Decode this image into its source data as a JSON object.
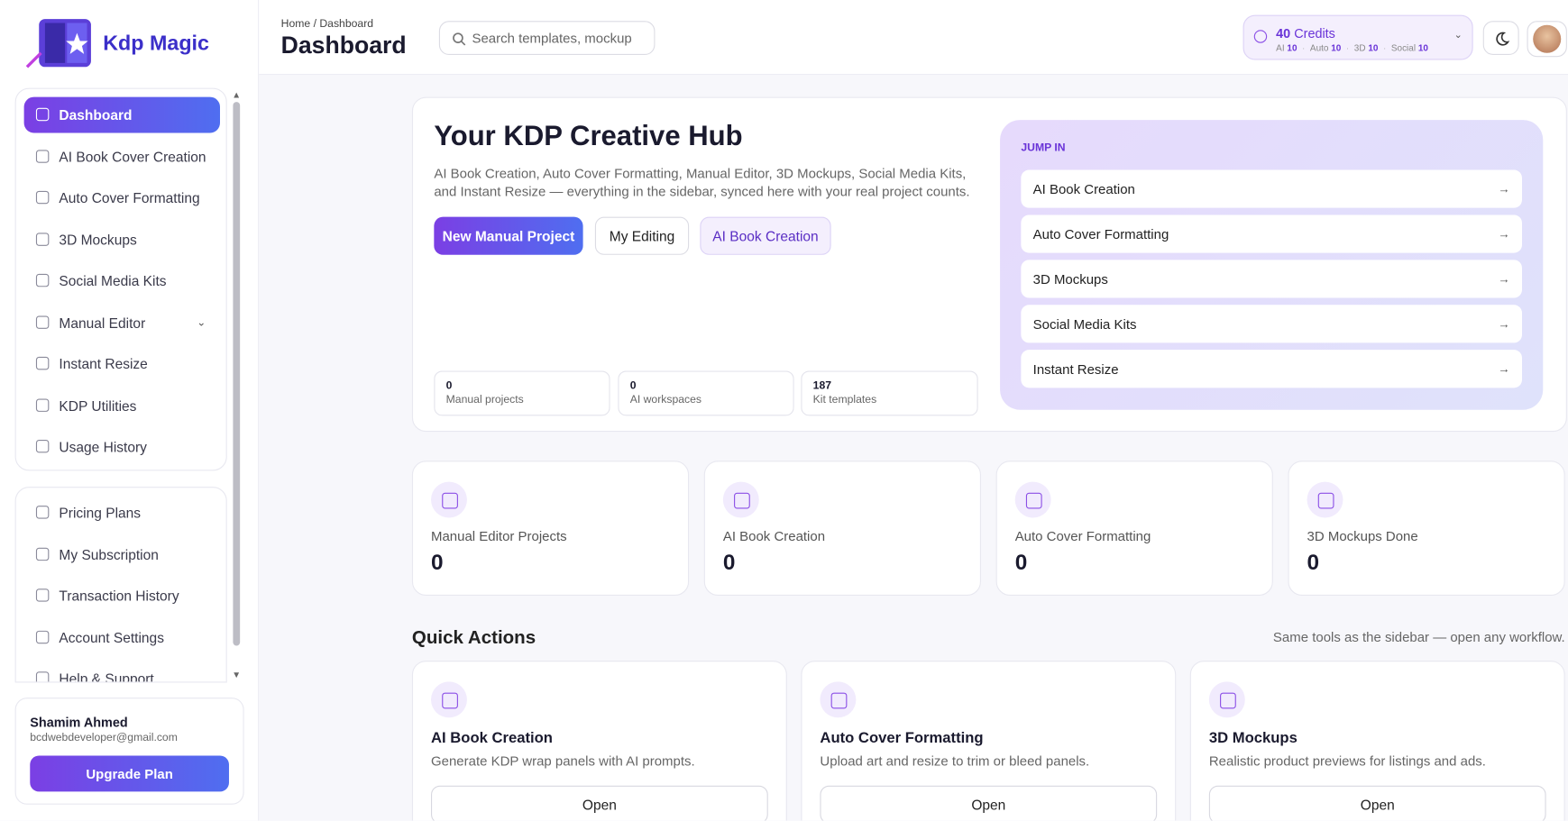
{
  "logo": "Kdp Magic",
  "nav": [
    "Dashboard",
    "AI Book Cover Creation",
    "Auto Cover Formatting",
    "3D Mockups",
    "Social Media Kits",
    "Manual Editor",
    "Instant Resize",
    "KDP Utilities",
    "Usage History"
  ],
  "nav2": [
    "Pricing Plans",
    "My Subscription",
    "Transaction History",
    "Account Settings",
    "Help & Support"
  ],
  "user": {
    "name": "Shamim Ahmed",
    "email": "bcdwebdeveloper@gmail.com",
    "button": "Upgrade Plan"
  },
  "header": {
    "breadcrumb": "Home / Dashboard",
    "title": "Dashboard",
    "search": "Search templates, mockup",
    "credits": {
      "amount": "40",
      "label": "Credits",
      "items": [
        [
          "AI",
          "10"
        ],
        [
          "Auto",
          "10"
        ],
        [
          "3D",
          "10"
        ],
        [
          "Social",
          "10"
        ]
      ]
    }
  },
  "hero": {
    "title": "Your KDP Creative Hub",
    "desc1": "AI Book Creation, Auto Cover Formatting, Manual Editor, 3D Mockups, Social Media Kits,",
    "desc2": "and Instant Resize — everything in the sidebar, synced here with your real project counts.",
    "buttons": [
      "New Manual Project",
      "My Editing",
      "AI Book Creation"
    ],
    "stats": [
      [
        "0",
        "Manual projects"
      ],
      [
        "0",
        "AI workspaces"
      ],
      [
        "187",
        "Kit templates"
      ]
    ],
    "jump_title": "JUMP IN",
    "jump": [
      "AI Book Creation",
      "Auto Cover Formatting",
      "3D Mockups",
      "Social Media Kits",
      "Instant Resize"
    ]
  },
  "stats": [
    [
      "Manual Editor Projects",
      "0"
    ],
    [
      "AI Book Creation",
      "0"
    ],
    [
      "Auto Cover Formatting",
      "0"
    ],
    [
      "3D Mockups Done",
      "0"
    ]
  ],
  "quick": {
    "title": "Quick Actions",
    "note": "Same tools as the sidebar — open any workflow.",
    "cards": [
      [
        "AI Book Creation",
        "Generate KDP wrap panels with AI prompts.",
        "Open"
      ],
      [
        "Auto Cover Formatting",
        "Upload art and resize to trim or bleed panels.",
        "Open"
      ],
      [
        "3D Mockups",
        "Realistic product previews for listings and ads.",
        "Open"
      ]
    ]
  }
}
